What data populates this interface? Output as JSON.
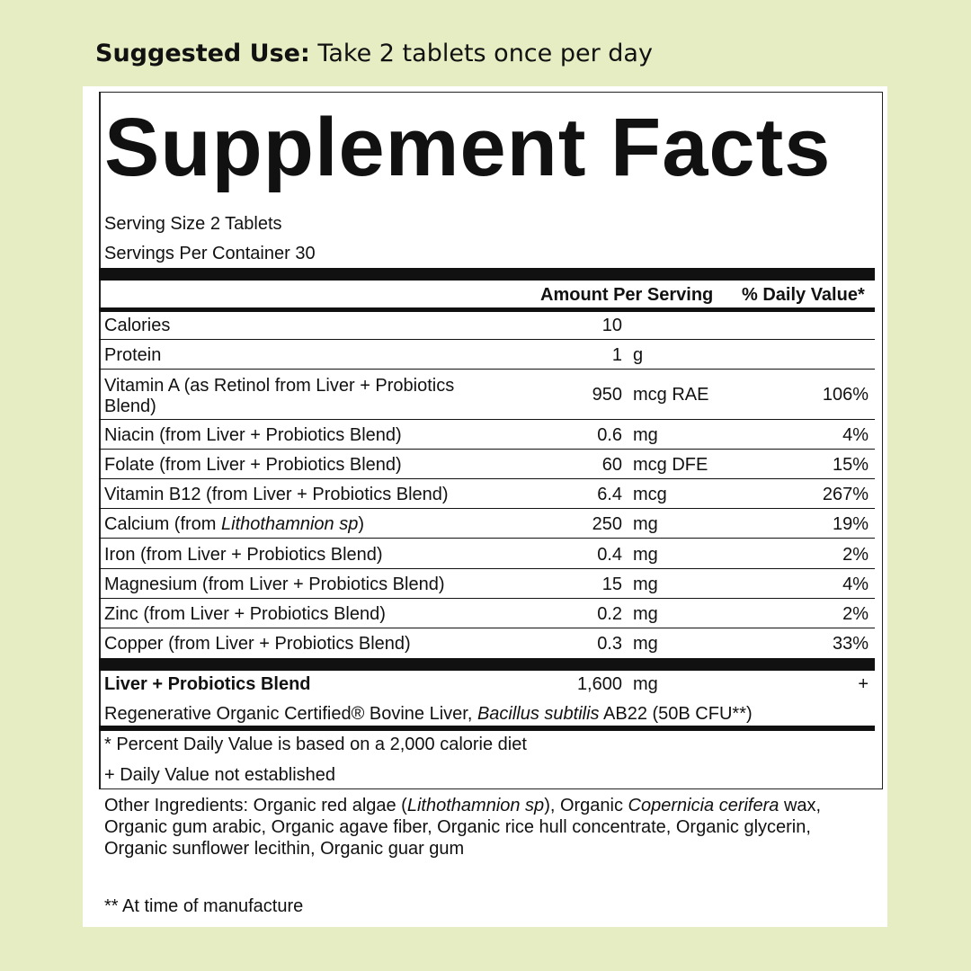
{
  "suggested_use": {
    "label": "Suggested Use:",
    "text": "Take 2 tablets once per day"
  },
  "title": "Supplement Facts",
  "serving_size": "Serving Size 2 Tablets",
  "servings_per_container": "Servings Per Container 30",
  "headers": {
    "amount": "Amount Per Serving",
    "daily_value": "% Daily Value*"
  },
  "rows": [
    {
      "name": "Calories",
      "amount": "10",
      "unit": "",
      "dv": ""
    },
    {
      "name": "Protein",
      "amount": "1",
      "unit": "g",
      "dv": ""
    },
    {
      "name_line1": "Vitamin A (as Retinol from Liver + Probiotics",
      "name_line2": "Blend)",
      "amount": "950",
      "unit": "mcg RAE",
      "dv": "106%"
    },
    {
      "name": "Niacin (from Liver + Probiotics Blend)",
      "amount": "0.6",
      "unit": "mg",
      "dv": "4%"
    },
    {
      "name": "Folate (from Liver + Probiotics Blend)",
      "amount": "60",
      "unit": "mcg DFE",
      "dv": "15%"
    },
    {
      "name": "Vitamin B12 (from Liver + Probiotics Blend)",
      "amount": "6.4",
      "unit": "mcg",
      "dv": "267%"
    },
    {
      "name_prefix": "Calcium (from ",
      "name_italic": "Lithothamnion sp",
      "name_suffix": ")",
      "amount": "250",
      "unit": "mg",
      "dv": "19%"
    },
    {
      "name": "Iron (from Liver + Probiotics Blend)",
      "amount": "0.4",
      "unit": "mg",
      "dv": "2%"
    },
    {
      "name": "Magnesium (from Liver + Probiotics Blend)",
      "amount": "15",
      "unit": "mg",
      "dv": "4%"
    },
    {
      "name": "Zinc (from Liver + Probiotics Blend)",
      "amount": "0.2",
      "unit": "mg",
      "dv": "2%"
    },
    {
      "name": "Copper (from Liver + Probiotics Blend)",
      "amount": "0.3",
      "unit": "mg",
      "dv": "33%"
    }
  ],
  "blend": {
    "name": "Liver + Probiotics Blend",
    "amount": "1,600",
    "unit": "mg",
    "dv": "+",
    "desc_prefix": "Regenerative Organic Certified® Bovine Liver, ",
    "desc_italic": "Bacillus subtilis",
    "desc_suffix": " AB22 (50B CFU**)"
  },
  "footnotes": {
    "percent": "* Percent Daily Value is based on a 2,000 calorie diet",
    "plus": "+ Daily Value not established"
  },
  "other_ingredients": {
    "l1_a": "Other Ingredients: Organic red algae (",
    "l1_i1": "Lithothamnion sp",
    "l1_b": "), Organic ",
    "l1_i2": "Copernicia cerifera",
    "l1_c": " wax,",
    "l2": "Organic gum arabic, Organic agave fiber, Organic rice hull concentrate, Organic glycerin,",
    "l3": "Organic sunflower lecithin, Organic guar gum"
  },
  "manufacture_note": "** At time of manufacture"
}
